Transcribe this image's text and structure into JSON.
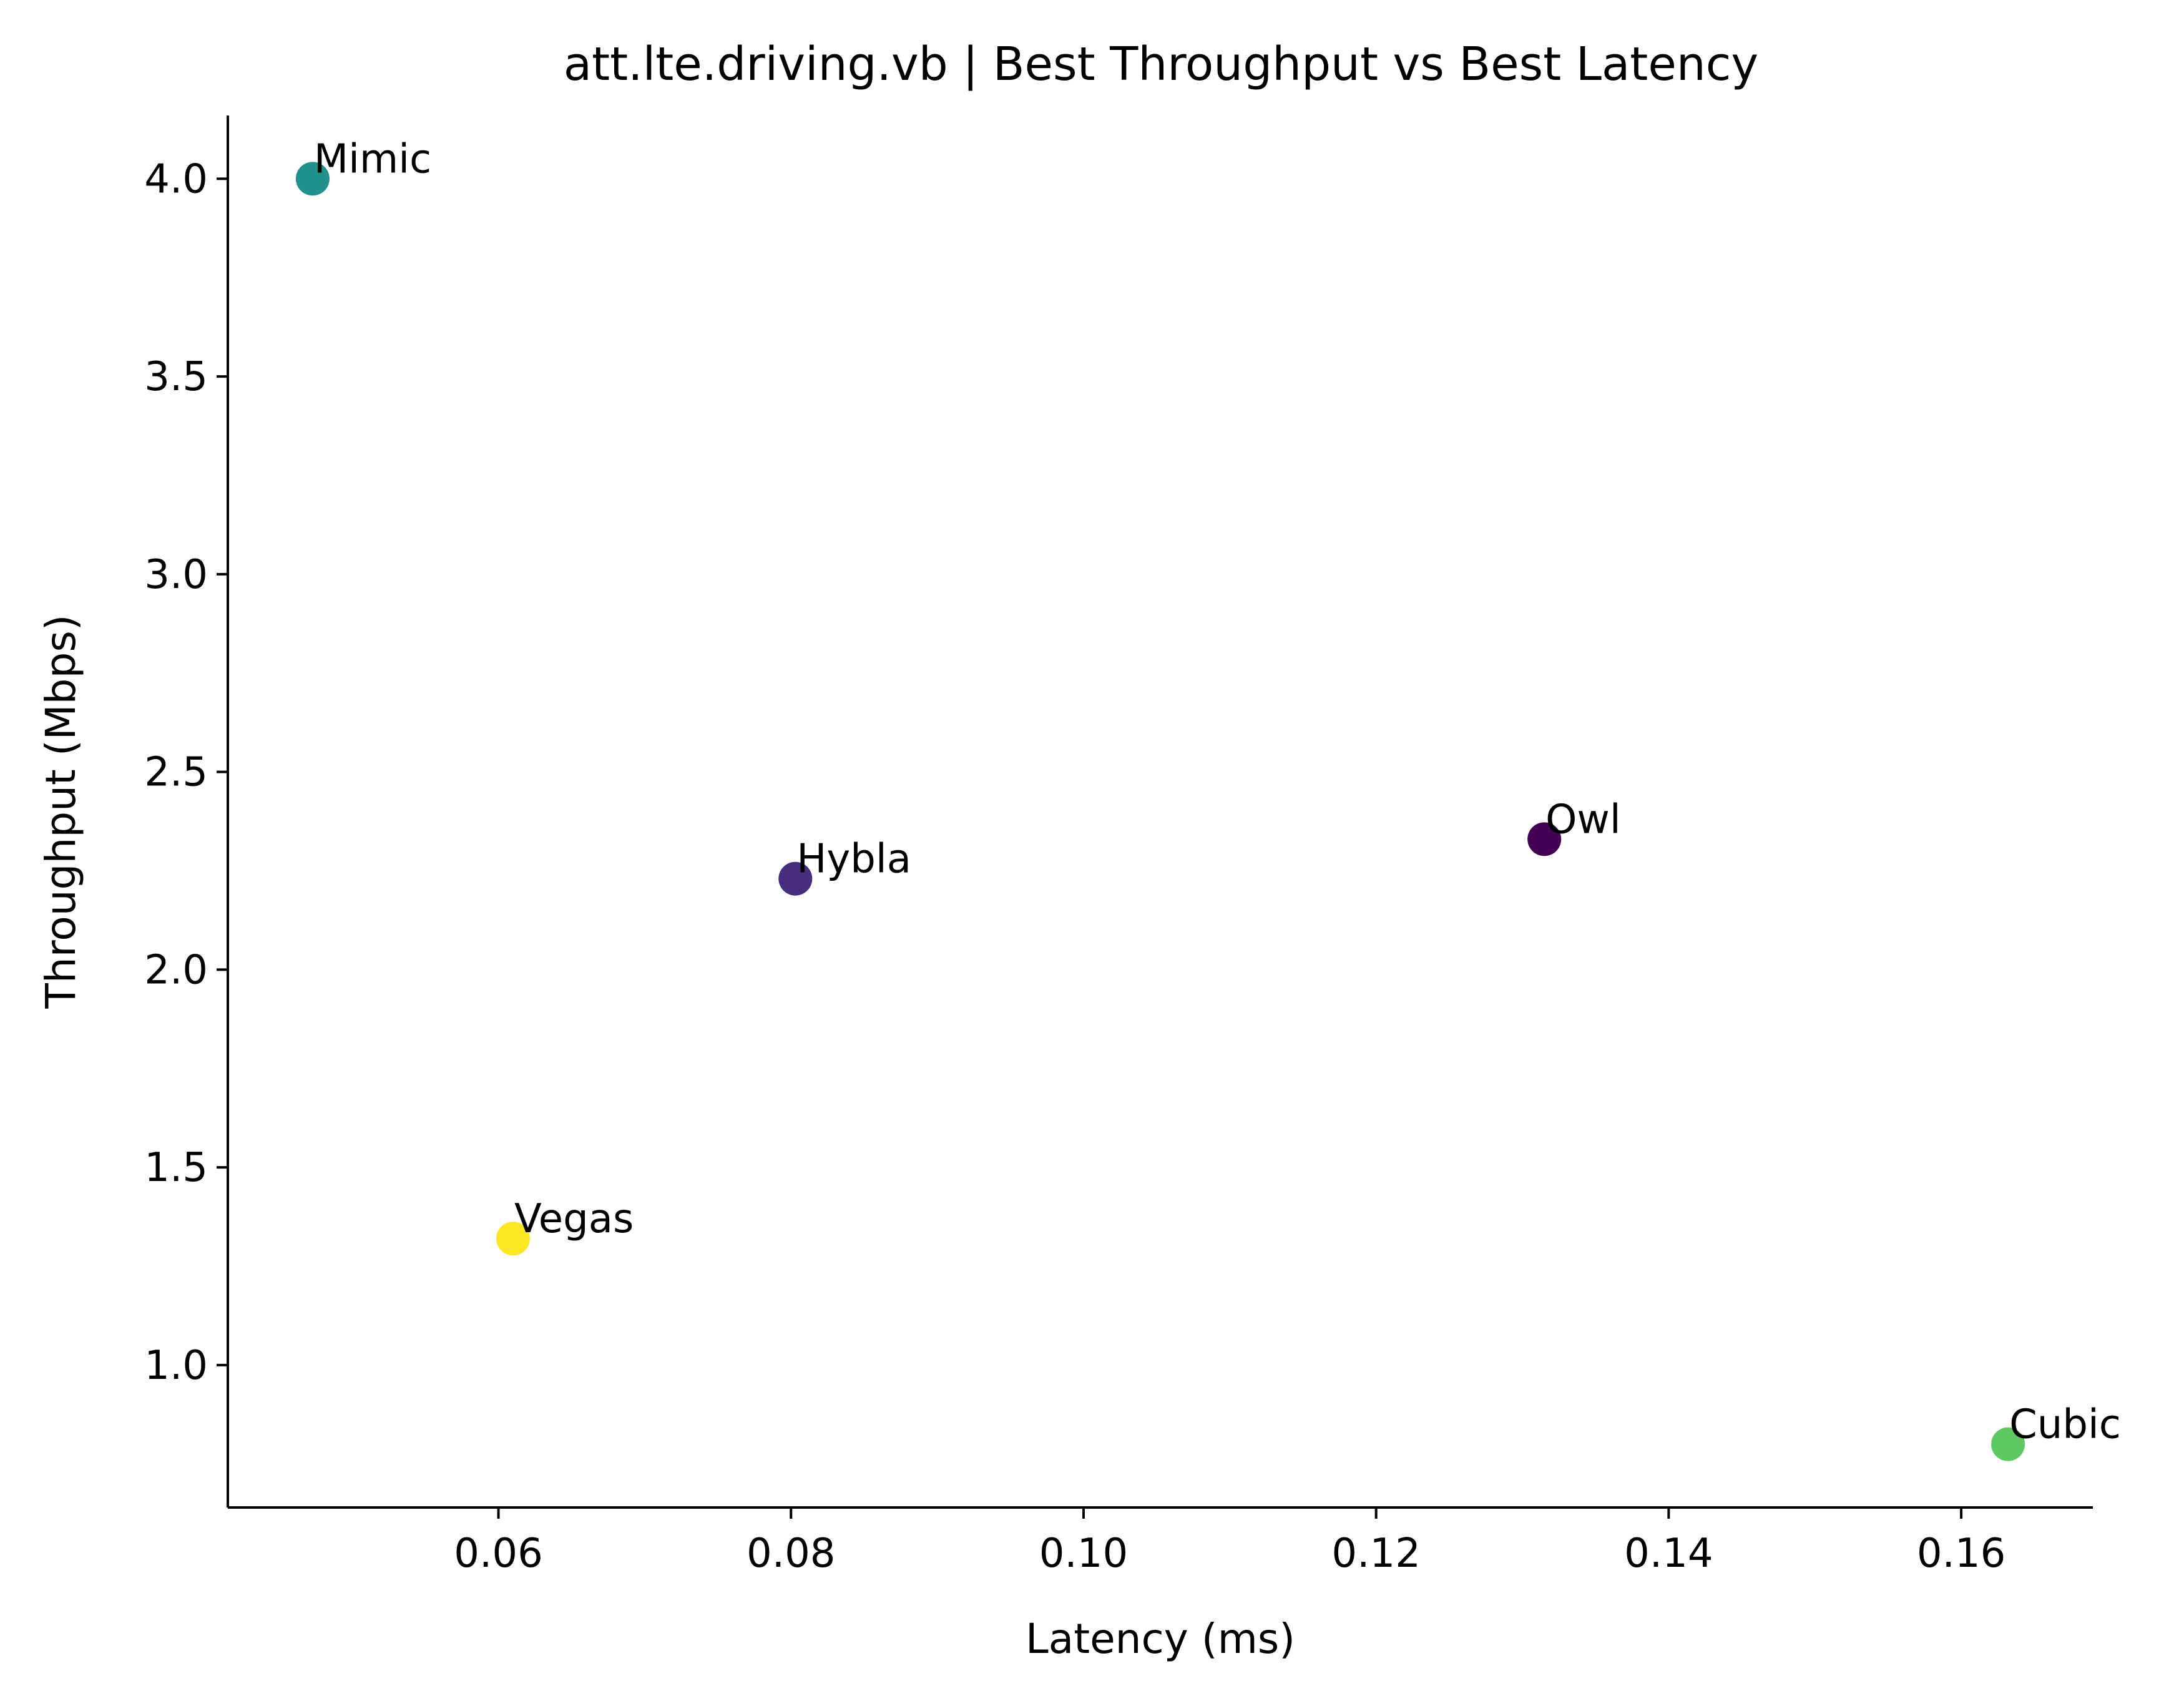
{
  "chart_data": {
    "type": "scatter",
    "title": "att.lte.driving.vb | Best Throughput vs Best Latency",
    "xlabel": "Latency (ms)",
    "ylabel": "Throughput (Mbps)",
    "xlim": [
      0.0415,
      0.169
    ],
    "ylim": [
      0.64,
      4.16
    ],
    "xticks": [
      0.06,
      0.08,
      0.1,
      0.12,
      0.14,
      0.16
    ],
    "xtick_labels": [
      "0.06",
      "0.08",
      "0.10",
      "0.12",
      "0.14",
      "0.16"
    ],
    "yticks": [
      1.0,
      1.5,
      2.0,
      2.5,
      3.0,
      3.5,
      4.0
    ],
    "ytick_labels": [
      "1.0",
      "1.5",
      "2.0",
      "2.5",
      "3.0",
      "3.5",
      "4.0"
    ],
    "grid": false,
    "legend": "none",
    "points": [
      {
        "label": "Mimic",
        "x": 0.0473,
        "y": 4.0,
        "color": "#21918c"
      },
      {
        "label": "Hybla",
        "x": 0.0803,
        "y": 2.23,
        "color": "#472d7b"
      },
      {
        "label": "Owl",
        "x": 0.1315,
        "y": 2.33,
        "color": "#440154"
      },
      {
        "label": "Vegas",
        "x": 0.061,
        "y": 1.32,
        "color": "#fde725"
      },
      {
        "label": "Cubic",
        "x": 0.1632,
        "y": 0.8,
        "color": "#5ec962"
      }
    ]
  }
}
